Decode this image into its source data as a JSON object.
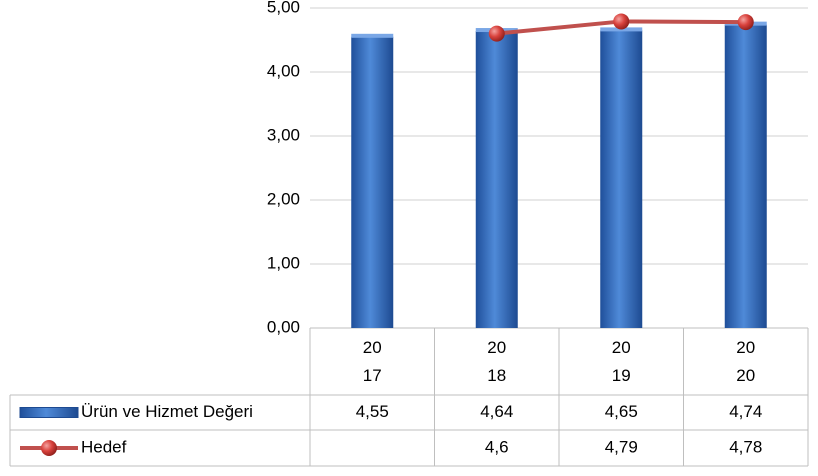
{
  "chart_data": {
    "type": "bar",
    "categories": [
      "2017",
      "2018",
      "2019",
      "2020"
    ],
    "series": [
      {
        "name": "Ürün ve Hizmet Değeri",
        "type": "bar",
        "color": "#3a6fc0",
        "values": [
          4.55,
          4.64,
          4.65,
          4.74
        ],
        "value_labels": [
          "4,55",
          "4,64",
          "4,65",
          "4,74"
        ]
      },
      {
        "name": "Hedef",
        "type": "line",
        "color": "#c0504d",
        "values": [
          null,
          4.6,
          4.79,
          4.78
        ],
        "value_labels": [
          null,
          "4,6",
          "4,79",
          "4,78"
        ]
      }
    ],
    "ylim": [
      0,
      5
    ],
    "yticks": [
      {
        "value": 0,
        "label": "0,00"
      },
      {
        "value": 1,
        "label": "1,00"
      },
      {
        "value": 2,
        "label": "2,00"
      },
      {
        "value": 3,
        "label": "3,00"
      },
      {
        "value": 4,
        "label": "4,00"
      },
      {
        "value": 5,
        "label": "5,00"
      }
    ],
    "grid": true
  }
}
